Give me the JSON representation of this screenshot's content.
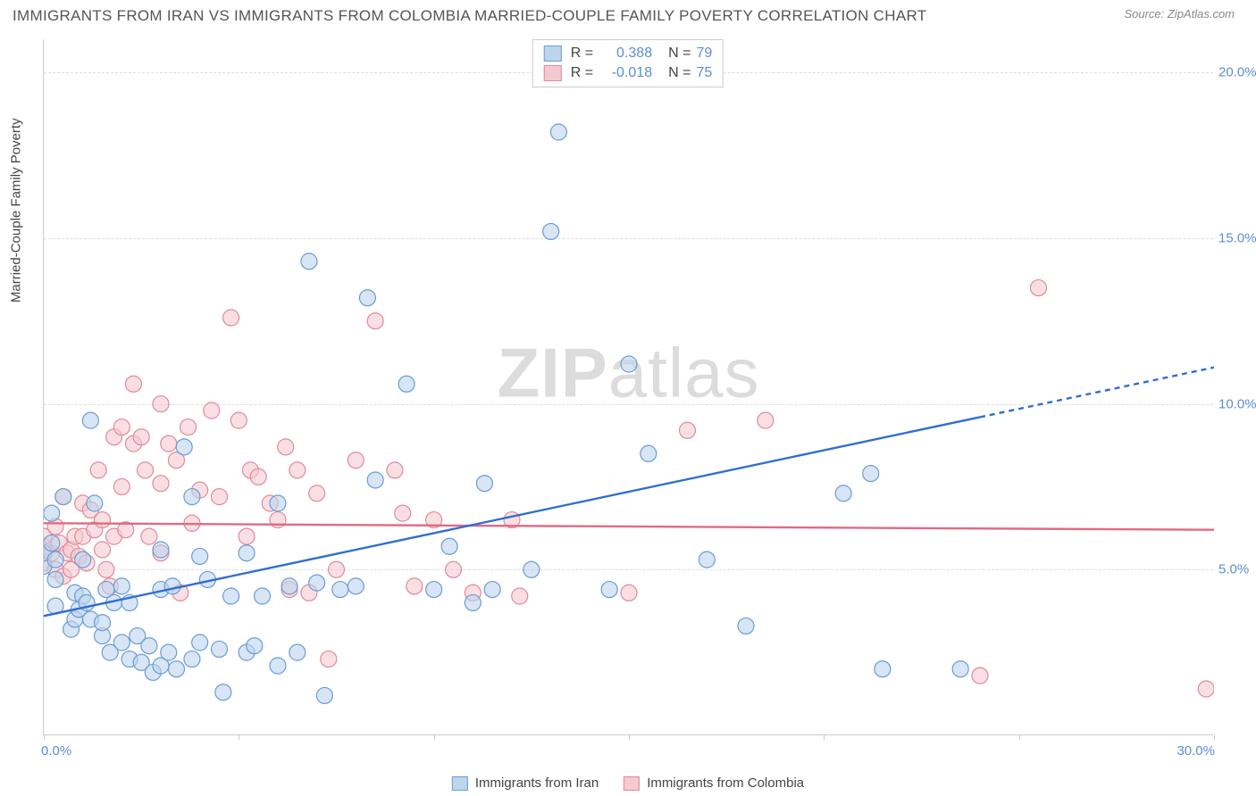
{
  "title": "IMMIGRANTS FROM IRAN VS IMMIGRANTS FROM COLOMBIA MARRIED-COUPLE FAMILY POVERTY CORRELATION CHART",
  "source": "Source: ZipAtlas.com",
  "y_axis_title": "Married-Couple Family Poverty",
  "watermark_bold": "ZIP",
  "watermark_light": "atlas",
  "chart": {
    "type": "scatter",
    "xlim": [
      0,
      30
    ],
    "ylim": [
      0,
      21
    ],
    "x_ticks": [
      0,
      5,
      10,
      15,
      20,
      25,
      30
    ],
    "y_ticks": [
      5,
      10,
      15,
      20
    ],
    "y_tick_labels": [
      "5.0%",
      "10.0%",
      "15.0%",
      "20.0%"
    ],
    "x_label_min": "0.0%",
    "x_label_max": "30.0%",
    "background_color": "#ffffff",
    "grid_color": "#dddddd",
    "axis_color": "#cccccc",
    "tick_label_color": "#5b8dd6",
    "point_radius": 9,
    "point_stroke_width": 1.2,
    "series_a": {
      "name": "Immigrants from Iran",
      "fill": "#bdd4ed",
      "stroke": "#6a9cd4",
      "fill_opacity": 0.6,
      "R": "0.388",
      "N": "79",
      "trend": {
        "x1": 0,
        "y1": 3.6,
        "x2": 24,
        "y2": 9.6,
        "dash_x2": 30,
        "dash_y2": 11.1,
        "stroke": "#2f6fd0",
        "width": 2.4
      },
      "points": [
        [
          0,
          5.1
        ],
        [
          0,
          5.5
        ],
        [
          0.2,
          5.8
        ],
        [
          0.2,
          6.7
        ],
        [
          0.3,
          3.9
        ],
        [
          0.3,
          4.7
        ],
        [
          0.3,
          5.3
        ],
        [
          0.5,
          7.2
        ],
        [
          0.7,
          3.2
        ],
        [
          0.8,
          3.5
        ],
        [
          0.8,
          4.3
        ],
        [
          0.9,
          3.8
        ],
        [
          1.0,
          4.2
        ],
        [
          1.0,
          5.3
        ],
        [
          1.1,
          4.0
        ],
        [
          1.2,
          3.5
        ],
        [
          1.2,
          9.5
        ],
        [
          1.3,
          7.0
        ],
        [
          1.5,
          3.0
        ],
        [
          1.5,
          3.4
        ],
        [
          1.6,
          4.4
        ],
        [
          1.7,
          2.5
        ],
        [
          1.8,
          4.0
        ],
        [
          2.0,
          4.5
        ],
        [
          2.0,
          2.8
        ],
        [
          2.2,
          2.3
        ],
        [
          2.2,
          4.0
        ],
        [
          2.4,
          3.0
        ],
        [
          2.5,
          2.2
        ],
        [
          2.7,
          2.7
        ],
        [
          2.8,
          1.9
        ],
        [
          3.0,
          4.4
        ],
        [
          3.0,
          2.1
        ],
        [
          3.0,
          5.6
        ],
        [
          3.2,
          2.5
        ],
        [
          3.3,
          4.5
        ],
        [
          3.4,
          2.0
        ],
        [
          3.6,
          8.7
        ],
        [
          3.8,
          2.3
        ],
        [
          3.8,
          7.2
        ],
        [
          4.0,
          5.4
        ],
        [
          4.0,
          2.8
        ],
        [
          4.2,
          4.7
        ],
        [
          4.5,
          2.6
        ],
        [
          4.6,
          1.3
        ],
        [
          4.8,
          4.2
        ],
        [
          5.2,
          2.5
        ],
        [
          5.2,
          5.5
        ],
        [
          5.4,
          2.7
        ],
        [
          5.6,
          4.2
        ],
        [
          6.0,
          2.1
        ],
        [
          6.0,
          7.0
        ],
        [
          6.3,
          4.5
        ],
        [
          6.5,
          2.5
        ],
        [
          6.8,
          14.3
        ],
        [
          7.0,
          4.6
        ],
        [
          7.2,
          1.2
        ],
        [
          7.6,
          4.4
        ],
        [
          8.0,
          4.5
        ],
        [
          8.3,
          13.2
        ],
        [
          8.5,
          7.7
        ],
        [
          9.3,
          10.6
        ],
        [
          10.0,
          4.4
        ],
        [
          10.4,
          5.7
        ],
        [
          11.0,
          4.0
        ],
        [
          11.3,
          7.6
        ],
        [
          11.5,
          4.4
        ],
        [
          12.5,
          5.0
        ],
        [
          13.0,
          15.2
        ],
        [
          13.2,
          18.2
        ],
        [
          14.5,
          4.4
        ],
        [
          15.0,
          11.2
        ],
        [
          15.5,
          8.5
        ],
        [
          17.0,
          5.3
        ],
        [
          18.0,
          3.3
        ],
        [
          20.5,
          7.3
        ],
        [
          21.2,
          7.9
        ],
        [
          21.5,
          2.0
        ],
        [
          23.5,
          2.0
        ]
      ]
    },
    "series_b": {
      "name": "Immigrants from Colombia",
      "fill": "#f5c9d0",
      "stroke": "#e08a9a",
      "fill_opacity": 0.6,
      "R": "-0.018",
      "N": "75",
      "trend": {
        "x1": 0,
        "y1": 6.4,
        "x2": 30,
        "y2": 6.2,
        "stroke": "#e06a85",
        "width": 2.4
      },
      "points": [
        [
          0,
          5.2
        ],
        [
          0,
          5.7
        ],
        [
          0,
          6.0
        ],
        [
          0.2,
          5.5
        ],
        [
          0.3,
          5.0
        ],
        [
          0.3,
          6.3
        ],
        [
          0.4,
          5.8
        ],
        [
          0.5,
          4.8
        ],
        [
          0.5,
          7.2
        ],
        [
          0.6,
          5.5
        ],
        [
          0.7,
          5.6
        ],
        [
          0.7,
          5.0
        ],
        [
          0.8,
          6.0
        ],
        [
          0.9,
          5.4
        ],
        [
          1.0,
          6.0
        ],
        [
          1.0,
          7.0
        ],
        [
          1.1,
          5.2
        ],
        [
          1.2,
          6.8
        ],
        [
          1.3,
          6.2
        ],
        [
          1.4,
          8.0
        ],
        [
          1.5,
          5.6
        ],
        [
          1.5,
          6.5
        ],
        [
          1.6,
          5.0
        ],
        [
          1.8,
          9.0
        ],
        [
          1.8,
          6.0
        ],
        [
          2.0,
          9.3
        ],
        [
          2.0,
          7.5
        ],
        [
          2.1,
          6.2
        ],
        [
          2.3,
          8.8
        ],
        [
          2.3,
          10.6
        ],
        [
          2.5,
          9.0
        ],
        [
          2.6,
          8.0
        ],
        [
          2.7,
          6.0
        ],
        [
          3.0,
          5.5
        ],
        [
          3.0,
          7.6
        ],
        [
          3.0,
          10.0
        ],
        [
          3.2,
          8.8
        ],
        [
          3.4,
          8.3
        ],
        [
          3.7,
          9.3
        ],
        [
          3.8,
          6.4
        ],
        [
          4.0,
          7.4
        ],
        [
          4.3,
          9.8
        ],
        [
          4.5,
          7.2
        ],
        [
          4.8,
          12.6
        ],
        [
          5.0,
          9.5
        ],
        [
          5.2,
          6.0
        ],
        [
          5.3,
          8.0
        ],
        [
          5.5,
          7.8
        ],
        [
          5.8,
          7.0
        ],
        [
          6.0,
          6.5
        ],
        [
          6.2,
          8.7
        ],
        [
          6.3,
          4.4
        ],
        [
          6.5,
          8.0
        ],
        [
          6.8,
          4.3
        ],
        [
          7.0,
          7.3
        ],
        [
          7.3,
          2.3
        ],
        [
          7.5,
          5.0
        ],
        [
          8.0,
          8.3
        ],
        [
          8.5,
          12.5
        ],
        [
          9.0,
          8.0
        ],
        [
          9.2,
          6.7
        ],
        [
          9.5,
          4.5
        ],
        [
          10.0,
          6.5
        ],
        [
          10.5,
          5.0
        ],
        [
          11.0,
          4.3
        ],
        [
          12.0,
          6.5
        ],
        [
          12.2,
          4.2
        ],
        [
          15.0,
          4.3
        ],
        [
          16.5,
          9.2
        ],
        [
          18.5,
          9.5
        ],
        [
          24.0,
          1.8
        ],
        [
          25.5,
          13.5
        ],
        [
          29.8,
          1.4
        ],
        [
          1.7,
          4.5
        ],
        [
          3.5,
          4.3
        ]
      ]
    }
  },
  "legend_bottom": {
    "a_label": "Immigrants from Iran",
    "b_label": "Immigrants from Colombia"
  }
}
